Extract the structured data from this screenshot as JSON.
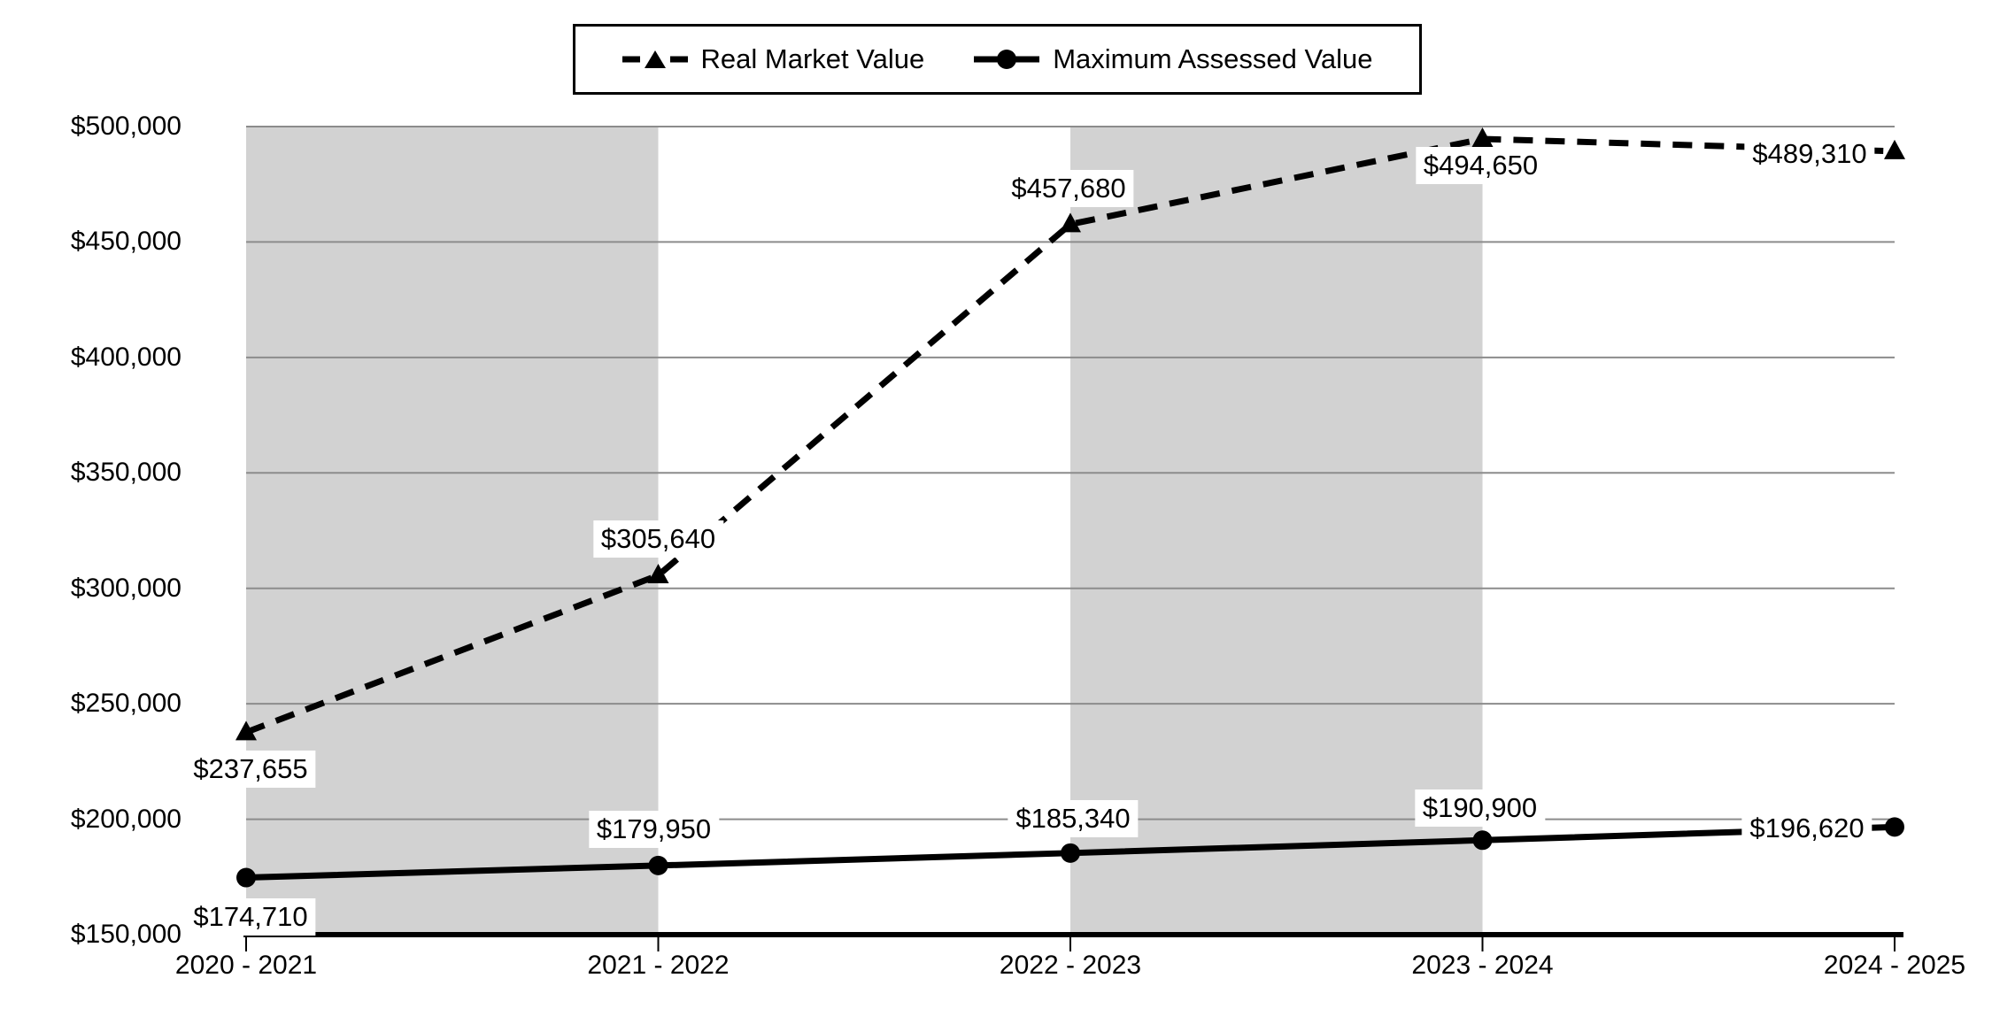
{
  "chart_data": {
    "type": "line",
    "title": "",
    "xlabel": "",
    "ylabel": "",
    "categories": [
      "2020 - 2021",
      "2021 - 2022",
      "2022 - 2023",
      "2023 - 2024",
      "2024 - 2025"
    ],
    "series": [
      {
        "name": "Real Market Value",
        "line_style": "dashed",
        "marker": "triangle",
        "values": [
          237655,
          305640,
          457680,
          494650,
          489310
        ],
        "labels": [
          "$237,655",
          "$305,640",
          "$457,680",
          "$494,650",
          "$489,310"
        ]
      },
      {
        "name": "Maximum Assessed Value",
        "line_style": "solid",
        "marker": "circle",
        "values": [
          174710,
          179950,
          185340,
          190900,
          196620
        ],
        "labels": [
          "$174,710",
          "$179,950",
          "$185,340",
          "$190,900",
          "$196,620"
        ]
      }
    ],
    "ylim": [
      150000,
      500000
    ],
    "ytick_step": 50000,
    "ytick_labels": [
      "$150,000",
      "$200,000",
      "$250,000",
      "$300,000",
      "$350,000",
      "$400,000",
      "$450,000",
      "$500,000"
    ],
    "shaded_column_ranges": [
      [
        0,
        1
      ],
      [
        2,
        3
      ]
    ],
    "grid": true,
    "legend_position": "top-center",
    "colors": {
      "series": "#000000",
      "band": "#d2d2d2",
      "gridline": "#8c8c8c",
      "axis": "#000000",
      "label_background": "#ffffff",
      "text": "#000000"
    }
  }
}
